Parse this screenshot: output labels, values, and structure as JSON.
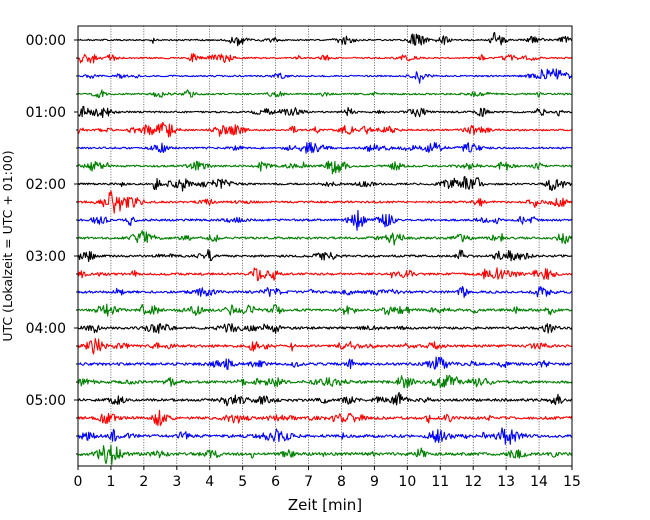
{
  "chart_data": {
    "type": "line",
    "subtype": "helicorder",
    "title": "",
    "xlabel": "Zeit  [min]",
    "ylabel": "UTC (Lokalzeit = UTC + 01:00)",
    "xlim": [
      0,
      15
    ],
    "x_ticks": [
      "0",
      "1",
      "2",
      "3",
      "4",
      "5",
      "6",
      "7",
      "8",
      "9",
      "10",
      "11",
      "12",
      "13",
      "14",
      "15"
    ],
    "y_tick_labels": [
      "00:00",
      "01:00",
      "02:00",
      "03:00",
      "04:00",
      "05:00"
    ],
    "trace_interval_minutes": 15,
    "trace_count": 24,
    "trace_colors": [
      "#000000",
      "#ff0000",
      "#0000ff",
      "#008000"
    ],
    "grid": "vertical dotted lines at each minute",
    "legend": "none"
  }
}
